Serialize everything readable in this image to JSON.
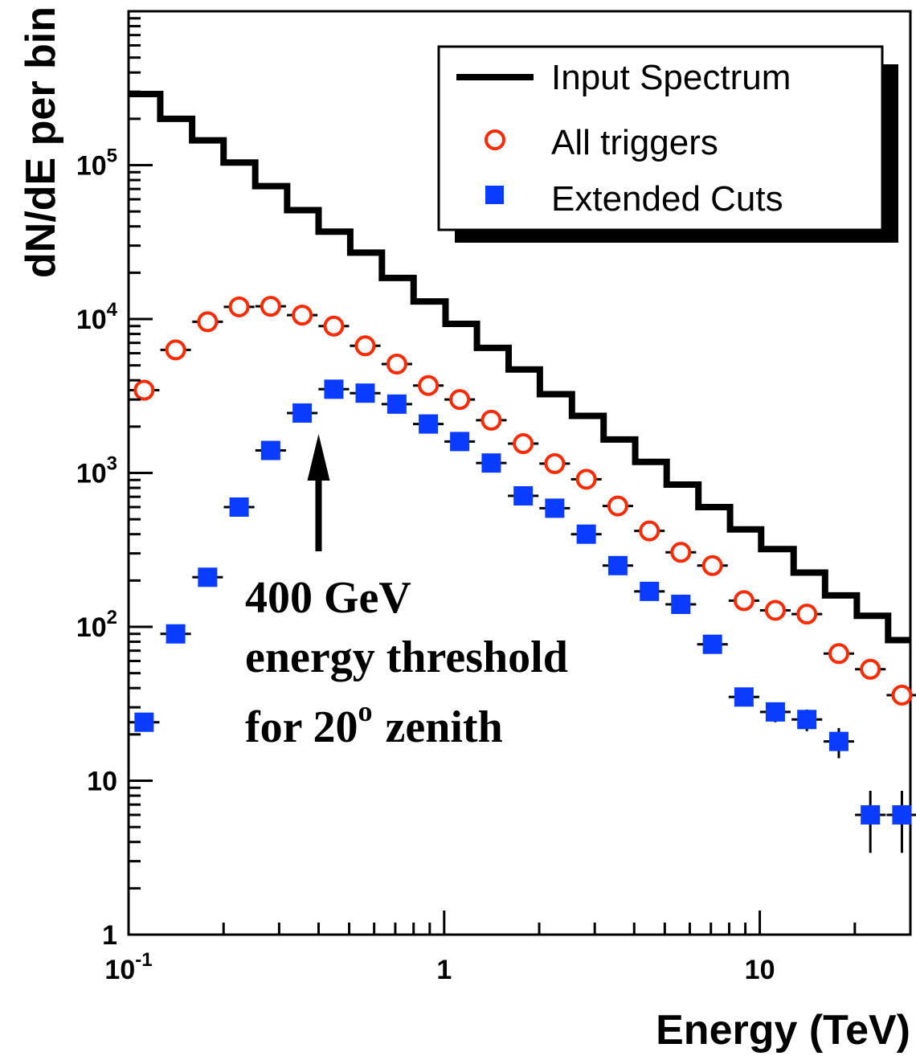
{
  "chart_data": {
    "type": "scatter",
    "xlabel": "Energy (TeV)",
    "ylabel": "dN/dE per bin",
    "x_scale": "log",
    "y_scale": "log",
    "xlim": [
      0.1,
      30
    ],
    "ylim": [
      1,
      1000000
    ],
    "x_ticks": [
      {
        "value": 0.1,
        "base": "10",
        "exp": "-1"
      },
      {
        "value": 1,
        "base": "1",
        "exp": ""
      },
      {
        "value": 10,
        "base": "10",
        "exp": ""
      }
    ],
    "y_ticks": [
      {
        "value": 1,
        "base": "1",
        "exp": ""
      },
      {
        "value": 10,
        "base": "10",
        "exp": ""
      },
      {
        "value": 100,
        "base": "10",
        "exp": "2"
      },
      {
        "value": 1000,
        "base": "10",
        "exp": "3"
      },
      {
        "value": 10000,
        "base": "10",
        "exp": "4"
      },
      {
        "value": 100000,
        "base": "10",
        "exp": "5"
      }
    ],
    "legend": {
      "position": "top-right",
      "entries": [
        "Input Spectrum",
        "All triggers",
        "Extended Cuts"
      ]
    },
    "series": [
      {
        "name": "Input Spectrum",
        "style": "step",
        "color": "#000000",
        "bin_edges": [
          0.1,
          0.126,
          0.159,
          0.2,
          0.252,
          0.318,
          0.4,
          0.504,
          0.635,
          0.8,
          1.01,
          1.27,
          1.6,
          2.01,
          2.54,
          3.2,
          4.03,
          5.07,
          6.39,
          8.05,
          10.1,
          12.8,
          16.1,
          20.3,
          25.5,
          30
        ],
        "values": [
          290000,
          200000,
          145000,
          104000,
          73000,
          51000,
          37000,
          27000,
          18500,
          13000,
          9300,
          6500,
          4700,
          3250,
          2350,
          1650,
          1180,
          840,
          600,
          430,
          320,
          225,
          160,
          118,
          82
        ]
      },
      {
        "name": "All triggers",
        "style": "open-circle",
        "color": "#ff2a00",
        "x": [
          0.112,
          0.141,
          0.178,
          0.224,
          0.282,
          0.355,
          0.447,
          0.562,
          0.708,
          0.891,
          1.12,
          1.41,
          1.78,
          2.24,
          2.82,
          3.55,
          4.47,
          5.62,
          7.08,
          8.91,
          11.2,
          14.1,
          17.8,
          22.4,
          28.2
        ],
        "y": [
          3450,
          6300,
          9600,
          12000,
          12100,
          10600,
          9000,
          6700,
          5100,
          3700,
          3000,
          2200,
          1550,
          1150,
          910,
          610,
          420,
          305,
          250,
          148,
          128,
          121,
          67,
          53,
          36
        ],
        "y_err": [
          0,
          0,
          0,
          0,
          0,
          0,
          0,
          0,
          0,
          0,
          0,
          0,
          0,
          0,
          0,
          0,
          0,
          0,
          0,
          0,
          0,
          0,
          0,
          0,
          0
        ]
      },
      {
        "name": "Extended Cuts",
        "style": "filled-square",
        "color": "#0a3cff",
        "x": [
          0.112,
          0.141,
          0.178,
          0.224,
          0.282,
          0.355,
          0.447,
          0.562,
          0.708,
          0.891,
          1.12,
          1.41,
          1.78,
          2.24,
          2.82,
          3.55,
          4.47,
          5.62,
          7.08,
          8.91,
          11.2,
          14.1,
          17.8,
          22.4,
          28.2
        ],
        "y": [
          24,
          90,
          210,
          600,
          1400,
          2450,
          3500,
          3300,
          2800,
          2080,
          1600,
          1160,
          710,
          590,
          400,
          250,
          170,
          140,
          77,
          35,
          28,
          25,
          18,
          6,
          6
        ],
        "y_err": [
          2.5,
          0,
          0,
          0,
          0,
          0,
          0,
          0,
          0,
          0,
          0,
          0,
          0,
          0,
          0,
          0,
          0,
          0,
          0,
          4,
          4,
          4,
          4,
          2.6,
          2.6
        ]
      }
    ],
    "annotation": {
      "lines": [
        "400 GeV",
        "energy threshold",
        "for 20"
      ],
      "superscript": "o",
      "tail": "zenith",
      "arrow_x": 0.4
    }
  }
}
